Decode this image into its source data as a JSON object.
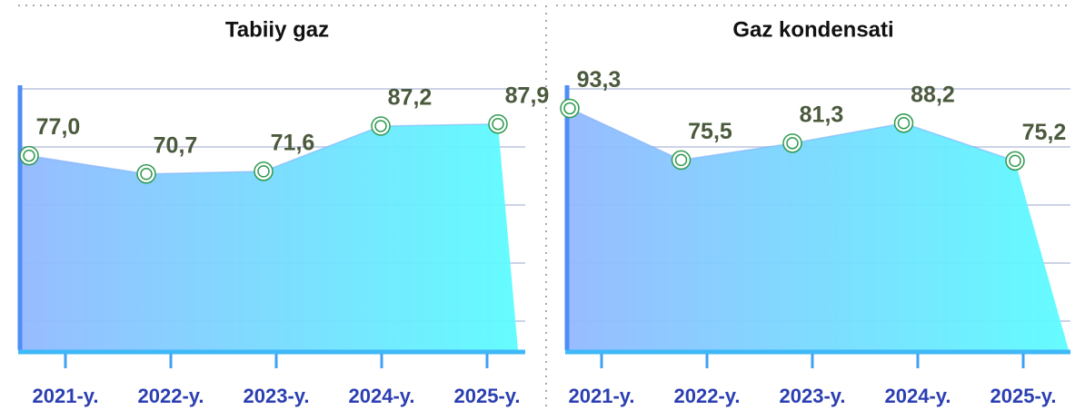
{
  "chart_data": [
    {
      "type": "area",
      "title": "Tabiiy gaz",
      "categories": [
        "2021-y.",
        "2022-y.",
        "2023-y.",
        "2024-y.",
        "2025-y."
      ],
      "values": [
        77.0,
        70.7,
        71.6,
        87.2,
        87.9
      ],
      "value_labels": [
        "77,0",
        "70,7",
        "71,6",
        "87,2",
        "87,9"
      ],
      "ylim": [
        10,
        100
      ],
      "yticks": [
        20,
        40,
        60,
        80,
        100
      ],
      "grid": true,
      "colors": [
        "#93b8ff",
        "#5cfcff"
      ]
    },
    {
      "type": "area",
      "title": "Gaz kondensati",
      "categories": [
        "2021-y.",
        "2022-y.",
        "2023-y.",
        "2024-y.",
        "2025-y."
      ],
      "values": [
        93.3,
        75.5,
        81.3,
        88.2,
        75.2
      ],
      "value_labels": [
        "93,3",
        "75,5",
        "81,3",
        "88,2",
        "75,2"
      ],
      "ylim": [
        10,
        100
      ],
      "yticks": [
        20,
        40,
        60,
        80,
        100
      ],
      "grid": true,
      "colors": [
        "#93b8ff",
        "#5cfcff"
      ]
    }
  ]
}
